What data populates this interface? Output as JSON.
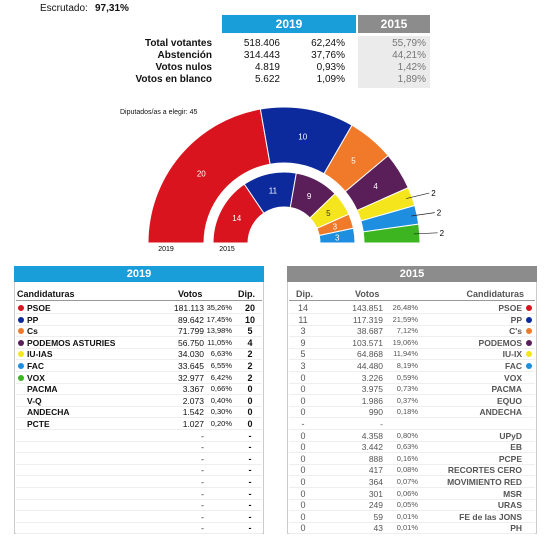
{
  "header": {
    "scrutiny_label": "Escrutado:",
    "scrutiny_value": "97,31%"
  },
  "summary": {
    "years": [
      "2019",
      "2015"
    ],
    "rows": [
      {
        "label": "Total votantes",
        "votes": "518.406",
        "pct": "62,24%",
        "pct_prev": "55,79%"
      },
      {
        "label": "Abstención",
        "votes": "314.443",
        "pct": "37,76%",
        "pct_prev": "44,21%"
      },
      {
        "label": "Votos nulos",
        "votes": "4.819",
        "pct": "0,93%",
        "pct_prev": "1,42%"
      },
      {
        "label": "Votos en blanco",
        "votes": "5.622",
        "pct": "1,09%",
        "pct_prev": "1,89%"
      }
    ]
  },
  "hemicycle": {
    "note": "Diputados/as a elegir: 45",
    "outer": {
      "label": "2019",
      "seats": [
        20,
        10,
        5,
        4,
        2,
        2,
        2
      ],
      "colors": [
        "#d9141e",
        "#0c2a9c",
        "#f07a2a",
        "#5a1f58",
        "#f4e51c",
        "#1e8fe0",
        "#3cb521"
      ]
    },
    "inner": {
      "label": "2015",
      "seats": [
        14,
        11,
        9,
        5,
        3,
        3
      ],
      "colors": [
        "#d9141e",
        "#0c2a9c",
        "#5a1f58",
        "#f4e51c",
        "#f07a2a",
        "#1e8fe0"
      ]
    }
  },
  "table_2019": {
    "title": "2019",
    "columns": [
      "Candidaturas",
      "Votos",
      "Dip."
    ],
    "rows": [
      {
        "name": "PSOE",
        "votes": "181.113",
        "pct": "35,26%",
        "seats": "20",
        "color": "#d9141e"
      },
      {
        "name": "PP",
        "votes": "89.642",
        "pct": "17,45%",
        "seats": "10",
        "color": "#0c2a9c"
      },
      {
        "name": "Cs",
        "votes": "71.799",
        "pct": "13,98%",
        "seats": "5",
        "color": "#f07a2a"
      },
      {
        "name": "PODEMOS ASTURIES",
        "votes": "56.750",
        "pct": "11,05%",
        "seats": "4",
        "color": "#5a1f58"
      },
      {
        "name": "IU-IAS",
        "votes": "34.030",
        "pct": "6,63%",
        "seats": "2",
        "color": "#f4e51c"
      },
      {
        "name": "FAC",
        "votes": "33.645",
        "pct": "6,55%",
        "seats": "2",
        "color": "#1e8fe0"
      },
      {
        "name": "VOX",
        "votes": "32.977",
        "pct": "6,42%",
        "seats": "2",
        "color": "#3cb521"
      },
      {
        "name": "PACMA",
        "votes": "3.367",
        "pct": "0,66%",
        "seats": "0"
      },
      {
        "name": "V-Q",
        "votes": "2.073",
        "pct": "0,40%",
        "seats": "0"
      },
      {
        "name": "ANDECHA",
        "votes": "1.542",
        "pct": "0,30%",
        "seats": "0"
      },
      {
        "name": "PCTE",
        "votes": "1.027",
        "pct": "0,20%",
        "seats": "0"
      },
      {
        "votes": "-",
        "seats": "-"
      },
      {
        "votes": "-",
        "seats": "-"
      },
      {
        "votes": "-",
        "seats": "-"
      },
      {
        "votes": "-",
        "seats": "-"
      },
      {
        "votes": "-",
        "seats": "-"
      },
      {
        "votes": "-",
        "seats": "-"
      },
      {
        "votes": "-",
        "seats": "-"
      },
      {
        "votes": "-",
        "seats": "-"
      },
      {
        "votes": "-",
        "seats": "-"
      }
    ]
  },
  "table_2015": {
    "title": "2015",
    "columns": [
      "Dip.",
      "Votos",
      "Candidaturas"
    ],
    "rows": [
      {
        "seats": "14",
        "votes": "143.851",
        "pct": "26,48%",
        "name": "PSOE",
        "color": "#d9141e"
      },
      {
        "seats": "11",
        "votes": "117.319",
        "pct": "21,59%",
        "name": "PP",
        "color": "#0c2a9c"
      },
      {
        "seats": "3",
        "votes": "38.687",
        "pct": "7,12%",
        "name": "C's",
        "color": "#f07a2a"
      },
      {
        "seats": "9",
        "votes": "103.571",
        "pct": "19,06%",
        "name": "PODEMOS",
        "color": "#5a1f58"
      },
      {
        "seats": "5",
        "votes": "64.868",
        "pct": "11,94%",
        "name": "IU-IX",
        "color": "#f4e51c"
      },
      {
        "seats": "3",
        "votes": "44.480",
        "pct": "8,19%",
        "name": "FAC",
        "color": "#1e8fe0"
      },
      {
        "seats": "0",
        "votes": "3.226",
        "pct": "0,59%",
        "name": "VOX"
      },
      {
        "seats": "0",
        "votes": "3.975",
        "pct": "0,73%",
        "name": "PACMA"
      },
      {
        "seats": "0",
        "votes": "1.986",
        "pct": "0,37%",
        "name": "EQUO"
      },
      {
        "seats": "0",
        "votes": "990",
        "pct": "0,18%",
        "name": "ANDECHA"
      },
      {
        "seats": "-",
        "votes": "-"
      },
      {
        "seats": "0",
        "votes": "4.358",
        "pct": "0,80%",
        "name": "UPyD"
      },
      {
        "seats": "0",
        "votes": "3.442",
        "pct": "0,63%",
        "name": "EB"
      },
      {
        "seats": "0",
        "votes": "888",
        "pct": "0,16%",
        "name": "PCPE"
      },
      {
        "seats": "0",
        "votes": "417",
        "pct": "0,08%",
        "name": "RECORTES CERO"
      },
      {
        "seats": "0",
        "votes": "364",
        "pct": "0,07%",
        "name": "MOVIMIENTO RED"
      },
      {
        "seats": "0",
        "votes": "301",
        "pct": "0,06%",
        "name": "MSR"
      },
      {
        "seats": "0",
        "votes": "249",
        "pct": "0,05%",
        "name": "URAS"
      },
      {
        "seats": "0",
        "votes": "59",
        "pct": "0,01%",
        "name": "FE de las JONS"
      },
      {
        "seats": "0",
        "votes": "43",
        "pct": "0,01%",
        "name": "PH"
      }
    ]
  }
}
